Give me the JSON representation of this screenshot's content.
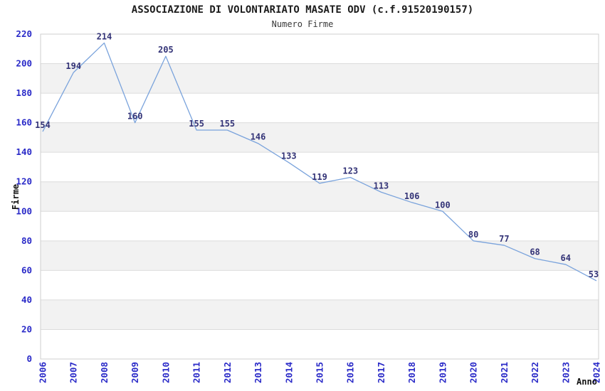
{
  "chart_data": {
    "type": "line",
    "title": "ASSOCIAZIONE DI VOLONTARIATO MASATE ODV (c.f.91520190157)",
    "subtitle": "Numero Firme",
    "xlabel": "Anno",
    "ylabel": "Firme",
    "categories": [
      "2006",
      "2007",
      "2008",
      "2009",
      "2010",
      "2011",
      "2012",
      "2013",
      "2014",
      "2015",
      "2016",
      "2017",
      "2018",
      "2019",
      "2020",
      "2021",
      "2022",
      "2023",
      "2024"
    ],
    "values": [
      154,
      194,
      214,
      160,
      205,
      155,
      155,
      146,
      133,
      119,
      123,
      113,
      106,
      100,
      80,
      77,
      68,
      64,
      53
    ],
    "ylim": [
      0,
      220
    ],
    "ytick_step": 20,
    "grid": true,
    "legend_position": "none",
    "colors": {
      "line": "#7aa3dc",
      "band": "#f2f2f2",
      "gridline": "#dcdcdc",
      "plot_border": "#cfcfcf",
      "axis_tick_label": "#2a2ac8",
      "data_label": "#333377",
      "title": "#1c1c1c",
      "subtitle": "#3a3a3a"
    }
  }
}
